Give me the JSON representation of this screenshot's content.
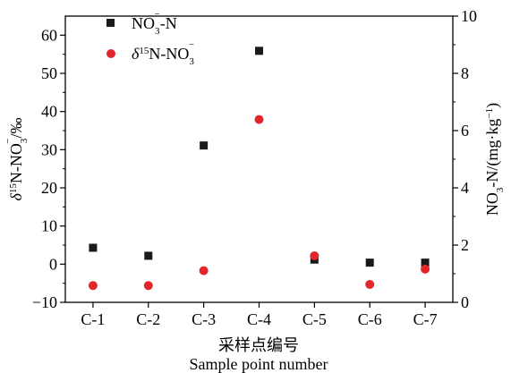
{
  "chart_data": {
    "type": "scatter",
    "categories": [
      "C-1",
      "C-2",
      "C-3",
      "C-4",
      "C-5",
      "C-6",
      "C-7"
    ],
    "xlabel_cn": "采样点编号",
    "xlabel_en": "Sample point number",
    "left_axis": {
      "label": "δ15N-NO3⁻/‰",
      "ylim": [
        -10,
        65
      ],
      "ticks": [
        -10,
        0,
        10,
        20,
        30,
        40,
        50,
        60
      ]
    },
    "right_axis": {
      "label": "NO3⁻-N/(mg·kg⁻¹)",
      "ylim": [
        0,
        10
      ],
      "ticks": [
        0,
        2,
        4,
        6,
        8,
        10
      ]
    },
    "series": [
      {
        "name": "NO3⁻-N",
        "axis": "left",
        "marker": "square",
        "color": "#1a1a1a",
        "values": [
          4.3,
          2.2,
          31.1,
          55.9,
          1.2,
          0.4,
          0.4
        ]
      },
      {
        "name": "δ15N-NO3⁻",
        "axis": "left",
        "marker": "circle",
        "color": "#e3262b",
        "values": [
          -5.6,
          -5.6,
          -1.7,
          37.9,
          2.2,
          -5.3,
          -1.3
        ]
      }
    ],
    "legend_position": "top-left",
    "grid": false
  }
}
